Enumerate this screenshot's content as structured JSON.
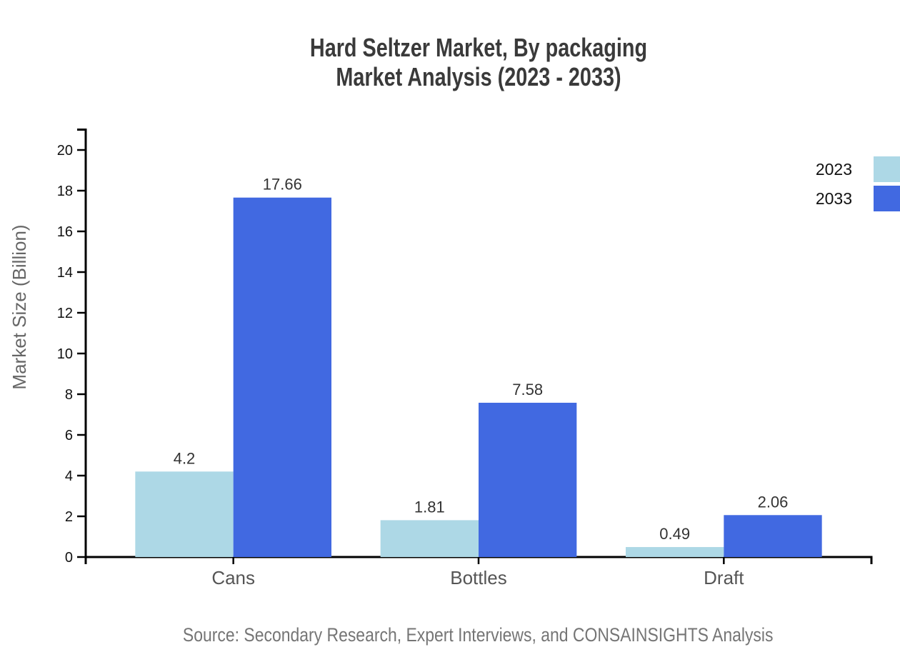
{
  "title": {
    "line1": "Hard Seltzer Market, By packaging",
    "line2": "Market Analysis (2023 - 2033)"
  },
  "source": "Source: Secondary Research, Expert Interviews, and CONSAINSIGHTS Analysis",
  "chart_data": {
    "type": "bar",
    "categories": [
      "Cans",
      "Bottles",
      "Draft"
    ],
    "series": [
      {
        "name": "2023",
        "color": "#ADD8E6",
        "values": [
          4.2,
          1.81,
          0.49
        ],
        "labels": [
          "4.2",
          "1.81",
          "0.49"
        ]
      },
      {
        "name": "2033",
        "color": "#4169E1",
        "values": [
          17.66,
          7.58,
          2.06
        ],
        "labels": [
          "17.66",
          "7.58",
          "2.06"
        ]
      }
    ],
    "xlabel": "",
    "ylabel": "Market Size (Billion)",
    "ylim": [
      0,
      20
    ],
    "ytick_step": 2,
    "yticks": [
      0,
      2,
      4,
      6,
      8,
      10,
      12,
      14,
      16,
      18,
      20
    ],
    "grid": false,
    "legend_position": "top-right",
    "legend": [
      "2023",
      "2033"
    ]
  },
  "colors": {
    "background": "#ffffff",
    "axis": "#000000",
    "tick_label": "#111111",
    "category_label": "#555555",
    "value_label": "#333333",
    "axis_title": "#666666",
    "legend_label": "#111111",
    "title": "#3a3a3a",
    "source": "#757575",
    "series_2023": "#ADD8E6",
    "series_2033": "#4169E1"
  }
}
